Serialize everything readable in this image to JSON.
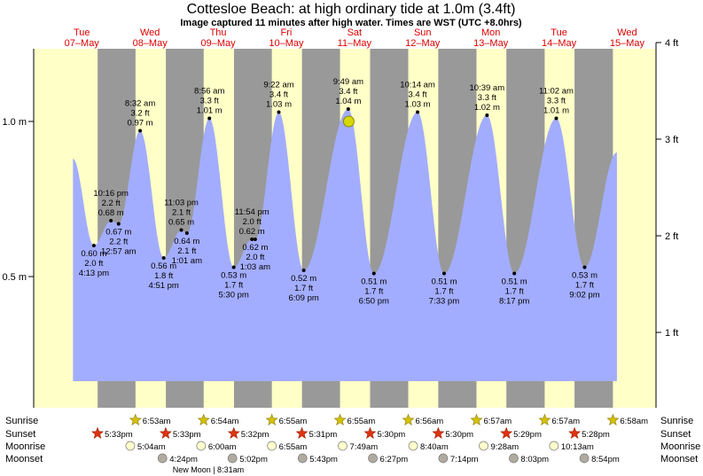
{
  "header": {
    "title": "Cottesloe Beach: at high  ordinary tide at 1.0m (3.4ft)",
    "subtitle": "Image captured 11 minutes after high water. Times are WST (UTC +8.0hrs)"
  },
  "chart_data": {
    "type": "area",
    "title": "Cottesloe Beach: at high  ordinary tide at 1.0m (3.4ft)",
    "days": [
      {
        "dow": "Tue",
        "date": "07–May"
      },
      {
        "dow": "Wed",
        "date": "08–May"
      },
      {
        "dow": "Thu",
        "date": "09–May"
      },
      {
        "dow": "Fri",
        "date": "10–May"
      },
      {
        "dow": "Sat",
        "date": "11–May"
      },
      {
        "dow": "Sun",
        "date": "12–May"
      },
      {
        "dow": "Mon",
        "date": "13–May"
      },
      {
        "dow": "Tue",
        "date": "14–May"
      },
      {
        "dow": "Wed",
        "date": "15–May"
      }
    ],
    "y_axis_left": {
      "ticks": [
        "1.0 m",
        "0.5 m"
      ],
      "values": [
        1.0,
        0.5
      ],
      "unit": "m"
    },
    "y_axis_right": {
      "ticks": [
        "4 ft",
        "3 ft",
        "2 ft",
        "1 ft"
      ],
      "values": [
        4,
        3,
        2,
        1
      ],
      "unit": "ft"
    },
    "ylim_m": [
      0.14,
      1.22
    ],
    "tides": [
      {
        "type": "low",
        "time": "4:13 pm",
        "height_m": "0.60 m",
        "height_ft": "2.0 ft",
        "day": 0.677,
        "value": 0.6
      },
      {
        "type": "high",
        "time": "10:16 pm",
        "height_m": "0.68 m",
        "height_ft": "2.2 ft",
        "day": 0.928,
        "value": 0.68
      },
      {
        "type": "low",
        "time": "12:57 am",
        "height_m": "0.67 m",
        "height_ft": "2.2 ft",
        "day": 1.04,
        "value": 0.67
      },
      {
        "type": "high",
        "time": "8:32 am",
        "height_m": "0.97 m",
        "height_ft": "3.2 ft",
        "day": 1.356,
        "value": 0.97
      },
      {
        "type": "low",
        "time": "4:51 pm",
        "height_m": "0.56 m",
        "height_ft": "1.8 ft",
        "day": 1.702,
        "value": 0.56
      },
      {
        "type": "high",
        "time": "11:03 pm",
        "height_m": "0.65 m",
        "height_ft": "2.1 ft",
        "day": 1.96,
        "value": 0.65
      },
      {
        "type": "low",
        "time": "1:01 am",
        "height_m": "0.64 m",
        "height_ft": "2.1 ft",
        "day": 2.042,
        "value": 0.64
      },
      {
        "type": "high",
        "time": "8:56 am",
        "height_m": "1.01 m",
        "height_ft": "3.3 ft",
        "day": 2.372,
        "value": 1.01
      },
      {
        "type": "low",
        "time": "5:30 pm",
        "height_m": "0.53 m",
        "height_ft": "1.7 ft",
        "day": 2.729,
        "value": 0.53
      },
      {
        "type": "high",
        "time": "11:54 pm",
        "height_m": "0.62 m",
        "height_ft": "2.0 ft",
        "day": 2.996,
        "value": 0.62
      },
      {
        "type": "low",
        "time": "1:03 am",
        "height_m": "0.62 m",
        "height_ft": "2.0 ft",
        "day": 3.044,
        "value": 0.62
      },
      {
        "type": "high",
        "time": "9:22 am",
        "height_m": "1.03 m",
        "height_ft": "3.4 ft",
        "day": 3.39,
        "value": 1.03
      },
      {
        "type": "low",
        "time": "6:09 pm",
        "height_m": "0.52 m",
        "height_ft": "1.7 ft",
        "day": 3.756,
        "value": 0.52
      },
      {
        "type": "high",
        "time": "9:49 am",
        "height_m": "1.04 m",
        "height_ft": "3.4 ft",
        "day": 4.409,
        "value": 1.04
      },
      {
        "type": "low",
        "time": "6:50 pm",
        "height_m": "0.51 m",
        "height_ft": "1.7 ft",
        "day": 4.785,
        "value": 0.51
      },
      {
        "type": "high",
        "time": "10:14 am",
        "height_m": "1.03 m",
        "height_ft": "3.4 ft",
        "day": 5.426,
        "value": 1.03
      },
      {
        "type": "low",
        "time": "7:33 pm",
        "height_m": "0.51 m",
        "height_ft": "1.7 ft",
        "day": 5.815,
        "value": 0.51
      },
      {
        "type": "high",
        "time": "10:39 am",
        "height_m": "1.02 m",
        "height_ft": "3.3 ft",
        "day": 6.444,
        "value": 1.02
      },
      {
        "type": "low",
        "time": "8:17 pm",
        "height_m": "0.51 m",
        "height_ft": "1.7 ft",
        "day": 6.845,
        "value": 0.51
      },
      {
        "type": "high",
        "time": "11:02 am",
        "height_m": "1.01 m",
        "height_ft": "3.3 ft",
        "day": 7.46,
        "value": 1.01
      },
      {
        "type": "low",
        "time": "9:02 pm",
        "height_m": "0.53 m",
        "height_ft": "1.7 ft",
        "day": 7.876,
        "value": 0.53
      }
    ],
    "current_marker": {
      "day": 4.416,
      "value": 1.0
    },
    "night_shading": [
      {
        "start": 0.733,
        "end": 1.288
      },
      {
        "start": 1.733,
        "end": 2.288
      },
      {
        "start": 2.733,
        "end": 3.288
      },
      {
        "start": 3.73,
        "end": 4.288
      },
      {
        "start": 4.729,
        "end": 5.289
      },
      {
        "start": 5.729,
        "end": 6.29
      },
      {
        "start": 6.728,
        "end": 7.29
      },
      {
        "start": 7.728,
        "end": 8.291
      }
    ],
    "colors": {
      "day_bg": "#ffffc8",
      "night_bg": "#999999",
      "tide_fill": "#a3adff",
      "current_marker": "#d7d700",
      "day_label": "#dd0000"
    }
  },
  "events": {
    "row_labels": {
      "sunrise": "Sunrise",
      "sunset": "Sunset",
      "moonrise": "Moonrise",
      "moonset": "Moonset"
    },
    "sunrise": [
      {
        "time": "6:53am",
        "day": 1.287
      },
      {
        "time": "6:54am",
        "day": 2.288
      },
      {
        "time": "6:55am",
        "day": 3.288
      },
      {
        "time": "6:55am",
        "day": 4.288
      },
      {
        "time": "6:56am",
        "day": 5.289
      },
      {
        "time": "6:57am",
        "day": 6.29
      },
      {
        "time": "6:57am",
        "day": 7.29
      },
      {
        "time": "6:58am",
        "day": 8.291
      }
    ],
    "sunset": [
      {
        "time": "5:33pm",
        "day": 0.731
      },
      {
        "time": "5:33pm",
        "day": 1.731
      },
      {
        "time": "5:32pm",
        "day": 2.73
      },
      {
        "time": "5:31pm",
        "day": 3.729
      },
      {
        "time": "5:30pm",
        "day": 4.729
      },
      {
        "time": "5:30pm",
        "day": 5.729
      },
      {
        "time": "5:29pm",
        "day": 6.728
      },
      {
        "time": "5:28pm",
        "day": 7.728
      }
    ],
    "moonrise": [
      {
        "time": "5:04am",
        "day": 1.211
      },
      {
        "time": "6:00am",
        "day": 2.25
      },
      {
        "time": "6:55am",
        "day": 3.288
      },
      {
        "time": "7:49am",
        "day": 4.326
      },
      {
        "time": "8:40am",
        "day": 5.361
      },
      {
        "time": "9:28am",
        "day": 6.394
      },
      {
        "time": "10:13am",
        "day": 7.426
      }
    ],
    "moonset": [
      {
        "time": "4:24pm",
        "day": 1.683
      },
      {
        "time": "5:02pm",
        "day": 2.71
      },
      {
        "time": "5:43pm",
        "day": 3.738
      },
      {
        "time": "6:27pm",
        "day": 4.769
      },
      {
        "time": "7:14pm",
        "day": 5.801
      },
      {
        "time": "8:03pm",
        "day": 6.835
      },
      {
        "time": "8:54pm",
        "day": 7.871
      }
    ],
    "moon_phase": {
      "text": "New Moon | 8:31am",
      "day": 2.355
    }
  }
}
